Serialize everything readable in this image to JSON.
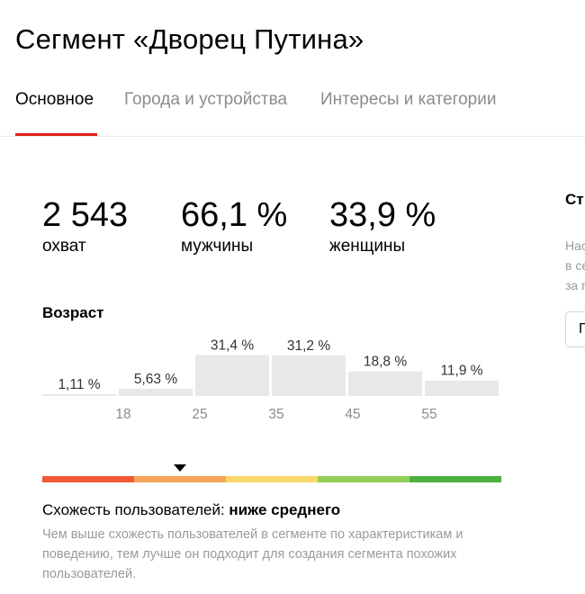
{
  "page_title": "Сегмент «Дворец Путина»",
  "tabs": [
    {
      "label": "Основное",
      "active": true
    },
    {
      "label": "Города и устройства",
      "active": false
    },
    {
      "label": "Интересы и категории",
      "active": false
    }
  ],
  "stats": {
    "reach": {
      "value": "2 543",
      "label": "охват"
    },
    "men": {
      "value": "66,1 %",
      "label": "мужчины"
    },
    "women": {
      "value": "33,9 %",
      "label": "женщины"
    }
  },
  "age_section": {
    "title": "Возраст"
  },
  "chart_data": {
    "type": "bar",
    "categories": [
      "<18",
      "18–24",
      "25–34",
      "35–44",
      "45–54",
      "55+"
    ],
    "values": [
      1.11,
      5.63,
      31.4,
      31.2,
      18.8,
      11.9
    ],
    "value_labels": [
      "1,11 %",
      "5,63 %",
      "31,4 %",
      "31,2 %",
      "18,8 %",
      "11,9 %"
    ],
    "tick_labels": [
      "18",
      "25",
      "35",
      "45",
      "55"
    ],
    "bar_color": "#e8e8e8",
    "label_color": "#333333",
    "tick_color": "#8c8c8c"
  },
  "similarity": {
    "label": "Схожесть пользователей:",
    "value": "ниже среднего",
    "level": 0.3,
    "scale_colors": [
      "#f15a35",
      "#f6a55a",
      "#f8d86a",
      "#93cf58",
      "#4caf3e"
    ],
    "description": "Чем выше схожесть пользователей в сегменте по характеристикам и поведению, тем лучше он подходит для создания сегмента похожих пользователей."
  },
  "side_panel": {
    "title": "Ст",
    "description_lines": [
      "Нас",
      "в се",
      "за п"
    ],
    "button_label": "П"
  },
  "colors": {
    "accent": "#e2201c",
    "muted_text": "#9a9a9a"
  }
}
